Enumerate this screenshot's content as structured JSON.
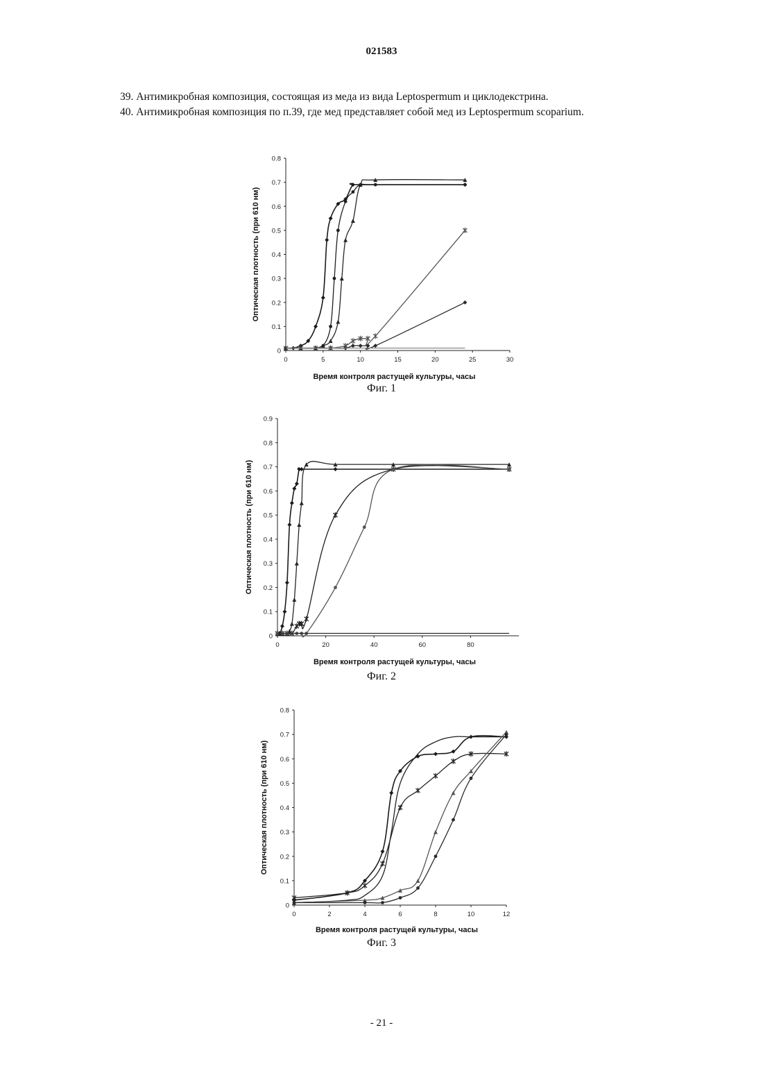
{
  "header": {
    "doc_number": "021583"
  },
  "body": {
    "claim_39": "39. Антимикробная композиция, состоящая из меда из вида Leptospermum и циклодекстрина.",
    "claim_40": "40. Антимикробная композиция по п.39, где мед представляет собой мед из Leptospermum scoparium."
  },
  "figures": [
    {
      "caption": "Фиг. 1"
    },
    {
      "caption": "Фиг. 2"
    },
    {
      "caption": "Фиг. 3"
    }
  ],
  "footer": {
    "page": "- 21 -"
  },
  "chart_data": [
    {
      "type": "line",
      "title": "",
      "xlabel": "Время контроля растущей культуры, часы",
      "ylabel": "Оптическая плотность (при 610 нм)",
      "xlim": [
        0,
        30
      ],
      "ylim": [
        0,
        0.8
      ],
      "xticks": [
        "0",
        "5",
        "10",
        "15",
        "20",
        "25",
        "30"
      ],
      "yticks": [
        "0",
        "0.1",
        "0.2",
        "0.3",
        "0.4",
        "0.5",
        "0.6",
        "0.7",
        "0.8"
      ],
      "grid": false,
      "legend": "none",
      "series": [
        {
          "marker": "diamond",
          "x": [
            0,
            1,
            2,
            3,
            4,
            5,
            5.5,
            6,
            7,
            8,
            9,
            10,
            24
          ],
          "y": [
            0.01,
            0.01,
            0.02,
            0.04,
            0.1,
            0.22,
            0.46,
            0.55,
            0.61,
            0.63,
            0.69,
            0.69,
            0.69
          ]
        },
        {
          "marker": "triangle",
          "x": [
            0,
            2,
            4,
            5,
            6,
            7,
            7.5,
            8,
            9,
            10,
            12,
            24
          ],
          "y": [
            0.01,
            0.01,
            0.01,
            0.02,
            0.04,
            0.12,
            0.3,
            0.46,
            0.54,
            0.69,
            0.71,
            0.71
          ]
        },
        {
          "marker": "circle",
          "x": [
            0,
            2,
            4,
            5,
            6,
            6.5,
            7,
            8,
            9,
            10,
            12,
            24
          ],
          "y": [
            0.01,
            0.01,
            0.01,
            0.02,
            0.1,
            0.3,
            0.5,
            0.62,
            0.66,
            0.69,
            0.69,
            0.69
          ]
        },
        {
          "marker": "star",
          "x": [
            0,
            2,
            4,
            6,
            8,
            9,
            10,
            11,
            12,
            24
          ],
          "y": [
            0.01,
            0.01,
            0.01,
            0.01,
            0.02,
            0.04,
            0.05,
            0.05,
            0.06,
            0.5
          ]
        },
        {
          "marker": "diamond",
          "x": [
            0,
            2,
            4,
            6,
            8,
            9,
            10,
            11,
            12,
            24
          ],
          "y": [
            0.01,
            0.01,
            0.01,
            0.01,
            0.01,
            0.02,
            0.02,
            0.02,
            0.02,
            0.2
          ]
        },
        {
          "marker": "none",
          "x": [
            0,
            10,
            24
          ],
          "y": [
            0.01,
            0.01,
            0.01
          ]
        }
      ]
    },
    {
      "type": "line",
      "title": "",
      "xlabel": "Время контроля растущей культуры, часы",
      "ylabel": "Оптическая плотность (при 610 нм)",
      "xlim": [
        0,
        100
      ],
      "ylim": [
        0,
        0.9
      ],
      "xticks": [
        "0",
        "20",
        "40",
        "60",
        "80"
      ],
      "yticks": [
        "0",
        "0.1",
        "0.2",
        "0.3",
        "0.4",
        "0.5",
        "0.6",
        "0.7",
        "0.8",
        "0.9"
      ],
      "grid": false,
      "legend": "none",
      "series": [
        {
          "marker": "diamond",
          "x": [
            0,
            1,
            2,
            3,
            4,
            5,
            6,
            7,
            8,
            9,
            10,
            24,
            48,
            96
          ],
          "y": [
            0.01,
            0.01,
            0.04,
            0.1,
            0.22,
            0.46,
            0.55,
            0.61,
            0.63,
            0.69,
            0.69,
            0.69,
            0.69,
            0.69
          ]
        },
        {
          "marker": "triangle",
          "x": [
            0,
            2,
            4,
            5,
            6,
            7,
            8,
            9,
            10,
            12,
            24,
            48,
            96
          ],
          "y": [
            0.01,
            0.01,
            0.01,
            0.02,
            0.05,
            0.15,
            0.3,
            0.46,
            0.55,
            0.71,
            0.71,
            0.71,
            0.71
          ]
        },
        {
          "marker": "star",
          "x": [
            0,
            2,
            4,
            6,
            8,
            9,
            10,
            12,
            24,
            48,
            96
          ],
          "y": [
            0.01,
            0.01,
            0.01,
            0.01,
            0.04,
            0.05,
            0.05,
            0.07,
            0.5,
            0.69,
            0.69
          ]
        },
        {
          "marker": "circle",
          "x": [
            0,
            2,
            4,
            6,
            8,
            10,
            12,
            24,
            36,
            48,
            96
          ],
          "y": [
            0.01,
            0.01,
            0.01,
            0.01,
            0.01,
            0.01,
            0.01,
            0.2,
            0.45,
            0.69,
            0.69
          ]
        },
        {
          "marker": "none",
          "x": [
            0,
            10,
            48,
            96
          ],
          "y": [
            0.01,
            0.01,
            0.01,
            0.01
          ]
        }
      ]
    },
    {
      "type": "line",
      "title": "",
      "xlabel": "Время контроля растущей культуры, часы",
      "ylabel": "Оптическая плотность (при 610 нм)",
      "xlim": [
        0,
        12
      ],
      "ylim": [
        0,
        0.8
      ],
      "xticks": [
        "0",
        "2",
        "4",
        "6",
        "8",
        "10",
        "12"
      ],
      "yticks": [
        "0",
        "0.1",
        "0.2",
        "0.3",
        "0.4",
        "0.5",
        "0.6",
        "0.7",
        "0.8"
      ],
      "grid": false,
      "legend": "none",
      "series": [
        {
          "marker": "diamond",
          "x": [
            0,
            3,
            4,
            5,
            5.5,
            6,
            7,
            8,
            9,
            10,
            12
          ],
          "y": [
            0.02,
            0.05,
            0.1,
            0.22,
            0.46,
            0.55,
            0.61,
            0.62,
            0.63,
            0.69,
            0.69
          ]
        },
        {
          "marker": "star",
          "x": [
            0,
            3,
            4,
            5,
            6,
            7,
            8,
            9,
            10,
            12
          ],
          "y": [
            0.03,
            0.05,
            0.08,
            0.17,
            0.4,
            0.47,
            0.53,
            0.59,
            0.62,
            0.62
          ]
        },
        {
          "marker": "none",
          "x": [
            0,
            3,
            4,
            5,
            5.5,
            6,
            7,
            8,
            9,
            10,
            12
          ],
          "y": [
            0.01,
            0.02,
            0.04,
            0.12,
            0.3,
            0.5,
            0.62,
            0.67,
            0.69,
            0.69,
            0.69
          ]
        },
        {
          "marker": "triangle",
          "x": [
            0,
            4,
            5,
            6,
            7,
            8,
            9,
            10,
            12
          ],
          "y": [
            0.01,
            0.02,
            0.03,
            0.06,
            0.1,
            0.3,
            0.46,
            0.55,
            0.71
          ]
        },
        {
          "marker": "circle",
          "x": [
            0,
            4,
            5,
            6,
            7,
            8,
            9,
            10,
            12
          ],
          "y": [
            0.01,
            0.01,
            0.01,
            0.03,
            0.07,
            0.2,
            0.35,
            0.52,
            0.7
          ]
        }
      ]
    }
  ]
}
